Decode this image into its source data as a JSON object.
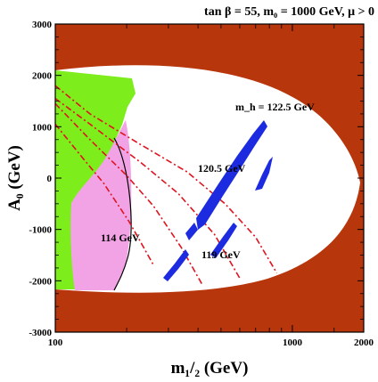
{
  "chart_data": {
    "type": "contour",
    "title": "tan β = 55, m₀ = 1000 GeV, μ > 0",
    "xlabel": "m₁/₂ (GeV)",
    "ylabel": "A₀ (GeV)",
    "x_scale": "log",
    "xlim": [
      100,
      2000
    ],
    "ylim": [
      -3000,
      3000
    ],
    "x_ticks": [
      {
        "value": 100,
        "label": "100"
      },
      {
        "value": 1000,
        "label": "1000"
      },
      {
        "value": 2000,
        "label": "2000"
      }
    ],
    "y_ticks": [
      {
        "value": 3000,
        "label": "3000"
      },
      {
        "value": 2000,
        "label": "2000"
      },
      {
        "value": 1000,
        "label": "1000"
      },
      {
        "value": 0,
        "label": "0"
      },
      {
        "value": -1000,
        "label": "-1000"
      },
      {
        "value": -2000,
        "label": "-2000"
      },
      {
        "value": -3000,
        "label": "-3000"
      }
    ],
    "colors": {
      "excluded": "#b8360c",
      "b_to_s_gamma": "#7ded1c",
      "g_minus_2": "#f2a3e6",
      "relic_density": "#1c2be0",
      "higgs_contours": "#e0131e",
      "lep_higgs_bound": "#000000"
    },
    "higgs_mass_contours": [
      {
        "label": "m_h = 122.5 GeV",
        "points": [
          [
            100,
            1800
          ],
          [
            140,
            1250
          ],
          [
            220,
            700
          ],
          [
            360,
            120
          ],
          [
            520,
            -500
          ],
          [
            700,
            -1150
          ],
          [
            860,
            -1850
          ]
        ]
      },
      {
        "label": "120.5 GeV",
        "points": [
          [
            100,
            1550
          ],
          [
            140,
            1050
          ],
          [
            230,
            300
          ],
          [
            330,
            -300
          ],
          [
            470,
            -1100
          ],
          [
            600,
            -1950
          ]
        ]
      },
      {
        "label": "119 GeV",
        "points": [
          [
            100,
            1450
          ],
          [
            140,
            750
          ],
          [
            200,
            50
          ],
          [
            260,
            -550
          ],
          [
            340,
            -1350
          ],
          [
            420,
            -2100
          ]
        ]
      },
      {
        "label": "",
        "points": [
          [
            100,
            1050
          ],
          [
            130,
            400
          ],
          [
            160,
            -100
          ],
          [
            205,
            -850
          ],
          [
            260,
            -1700
          ]
        ]
      }
    ],
    "lep_higgs_contour": {
      "label": "114 GeV",
      "points": [
        [
          205,
          1150
        ],
        [
          230,
          700
        ],
        [
          250,
          0
        ],
        [
          255,
          -1100
        ],
        [
          240,
          -1750
        ],
        [
          215,
          -2150
        ]
      ]
    },
    "annotations": [
      {
        "text": "m_h = 122.5 GeV"
      },
      {
        "text": "120.5 GeV"
      },
      {
        "text": "114 GeV"
      },
      {
        "text": "119 GeV"
      }
    ]
  }
}
